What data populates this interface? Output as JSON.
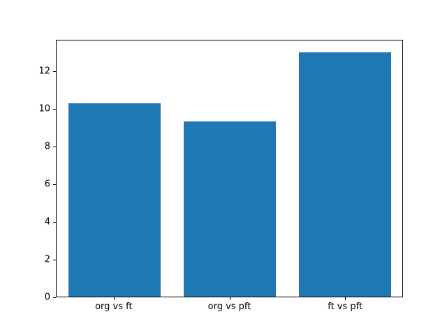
{
  "figure": {
    "background": "#ffffff",
    "spine_color": "#000000",
    "title": ""
  },
  "chart_data": {
    "type": "bar",
    "categories": [
      "org vs ft",
      "org vs pft",
      "ft vs pft"
    ],
    "values": [
      10.3,
      9.35,
      13.0
    ],
    "title": "",
    "xlabel": "",
    "ylabel": "",
    "ylim": [
      0,
      13.65
    ],
    "yticks": [
      0,
      2,
      4,
      6,
      8,
      10,
      12
    ],
    "bar_color": "#1f77b4",
    "bar_width_fraction": 0.8,
    "grid": false,
    "legend": null
  }
}
